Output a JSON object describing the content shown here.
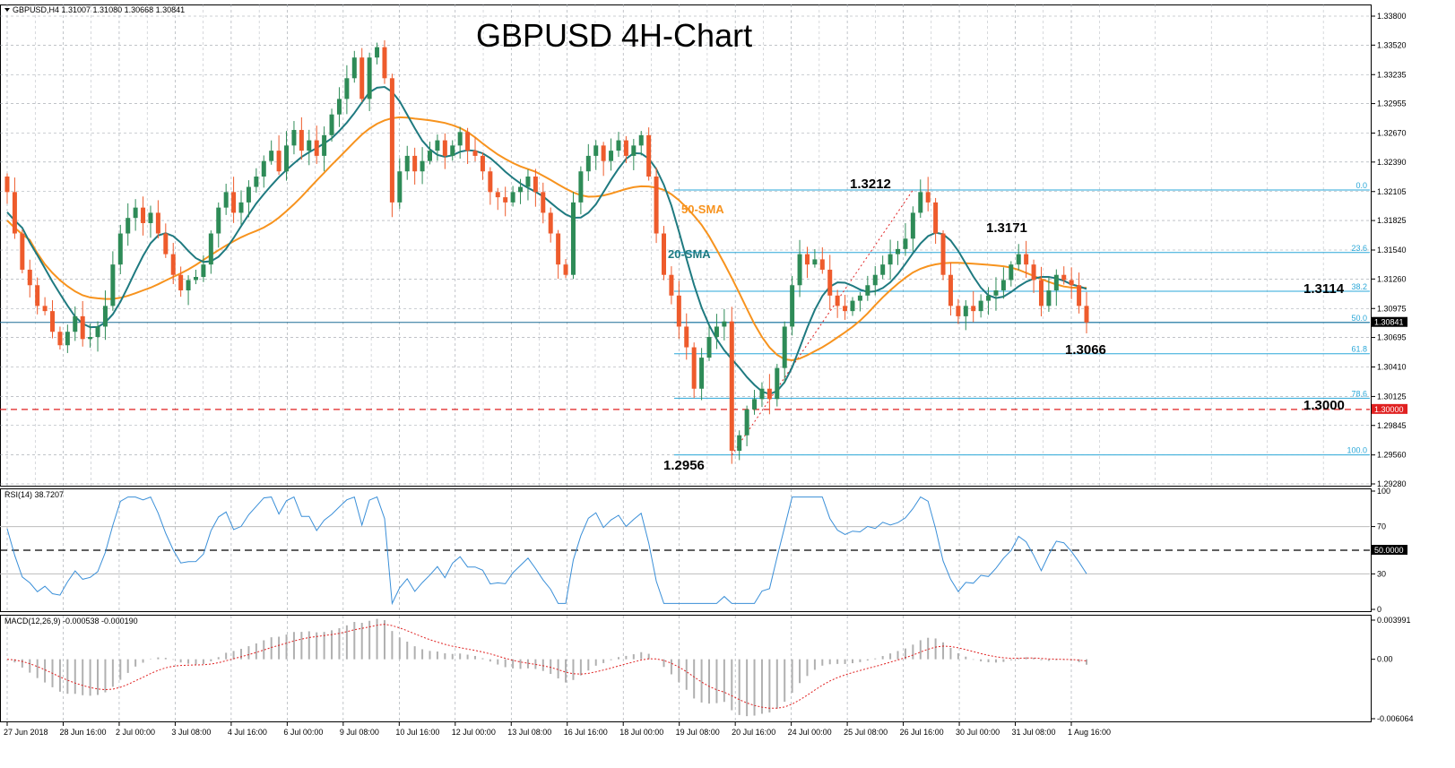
{
  "header": {
    "symbol_info": "GBPUSD,H4  1.31007 1.31080 1.30668 1.30841"
  },
  "chart_data": {
    "type": "candlestick",
    "title": "GBPUSD 4H-Chart",
    "price_axis": {
      "ylim": [
        1.2928,
        1.338
      ],
      "ticks": [
        "1.33800",
        "1.33520",
        "1.33235",
        "1.32955",
        "1.32670",
        "1.32390",
        "1.32105",
        "1.31825",
        "1.31540",
        "1.31260",
        "1.30975",
        "1.30695",
        "1.30410",
        "1.30125",
        "1.29845",
        "1.29560",
        "1.29280"
      ],
      "current_price": "1.30841",
      "current_value": 1.30841,
      "level_1_3000_label": "1.30000"
    },
    "x_ticks": [
      "27 Jun 2018",
      "28 Jun 16:00",
      "2 Jul 00:00",
      "3 Jul 08:00",
      "4 Jul 16:00",
      "6 Jul 00:00",
      "9 Jul 08:00",
      "10 Jul 16:00",
      "12 Jul 00:00",
      "13 Jul 08:00",
      "16 Jul 16:00",
      "18 Jul 00:00",
      "19 Jul 08:00",
      "20 Jul 16:00",
      "24 Jul 00:00",
      "25 Jul 08:00",
      "26 Jul 16:00",
      "30 Jul 00:00",
      "31 Jul 08:00",
      "1 Aug 16:00"
    ],
    "candle_count": 144,
    "closes": [
      1.321,
      1.317,
      1.3135,
      1.312,
      1.31,
      1.3095,
      1.3075,
      1.3062,
      1.3075,
      1.309,
      1.3068,
      1.307,
      1.308,
      1.31,
      1.314,
      1.317,
      1.3185,
      1.3195,
      1.318,
      1.319,
      1.317,
      1.315,
      1.313,
      1.3115,
      1.3125,
      1.3128,
      1.314,
      1.317,
      1.3195,
      1.321,
      1.319,
      1.32,
      1.3215,
      1.3225,
      1.324,
      1.325,
      1.323,
      1.3255,
      1.327,
      1.325,
      1.326,
      1.3245,
      1.3265,
      1.3285,
      1.33,
      1.332,
      1.334,
      1.33,
      1.334,
      1.335,
      1.332,
      1.32,
      1.323,
      1.3245,
      1.323,
      1.324,
      1.325,
      1.326,
      1.3245,
      1.3255,
      1.3268,
      1.325,
      1.3245,
      1.323,
      1.321,
      1.3205,
      1.32,
      1.321,
      1.3215,
      1.3225,
      1.321,
      1.319,
      1.317,
      1.314,
      1.313,
      1.32,
      1.323,
      1.3245,
      1.3255,
      1.324,
      1.325,
      1.326,
      1.3245,
      1.3255,
      1.3265,
      1.3225,
      1.317,
      1.313,
      1.311,
      1.308,
      1.306,
      1.302,
      1.305,
      1.307,
      1.308,
      1.3085,
      1.296,
      1.2975,
      1.3,
      1.301,
      1.302,
      1.301,
      1.304,
      1.308,
      1.312,
      1.315,
      1.314,
      1.3145,
      1.3135,
      1.311,
      1.31,
      1.3095,
      1.3105,
      1.311,
      1.312,
      1.313,
      1.314,
      1.315,
      1.3155,
      1.3165,
      1.319,
      1.321,
      1.32,
      1.317,
      1.313,
      1.31,
      1.309,
      1.31,
      1.3095,
      1.3105,
      1.311,
      1.3115,
      1.3125,
      1.314,
      1.315,
      1.314,
      1.3125,
      1.31,
      1.3115,
      1.313,
      1.3125,
      1.312,
      1.31,
      1.3084
    ],
    "fibonacci": {
      "high": 1.3212,
      "low": 1.2956,
      "levels": [
        {
          "label": "0.0",
          "price": 1.3212
        },
        {
          "label": "23.6",
          "price": 1.31516
        },
        {
          "label": "38.2",
          "price": 1.31142
        },
        {
          "label": "50.0",
          "price": 1.3084
        },
        {
          "label": "61.8",
          "price": 1.30538
        },
        {
          "label": "78.6",
          "price": 1.30108
        },
        {
          "label": "100.0",
          "price": 1.2956
        }
      ]
    },
    "annotations": [
      {
        "text": "1.3212",
        "price": 1.3212
      },
      {
        "text": "1.3171",
        "price": 1.3171
      },
      {
        "text": "1.3114",
        "price": 1.3114
      },
      {
        "text": "1.3066",
        "price": 1.3066
      },
      {
        "text": "1.3000",
        "price": 1.3
      },
      {
        "text": "1.2956",
        "price": 1.2956
      }
    ],
    "sma_labels": {
      "sma50": "50-SMA",
      "sma20": "20-SMA"
    },
    "rsi": {
      "label": "RSI(14) 38.7207",
      "value": 38.7207,
      "ylim": [
        0,
        100
      ],
      "ticks": [
        "100",
        "70",
        "50.0000",
        "30",
        "0"
      ],
      "current_label": "50.0000"
    },
    "macd": {
      "label": "MACD(12,26,9) -0.000538 -0.000190",
      "macd": -0.000538,
      "signal": -0.00019,
      "ylim": [
        -0.006064,
        0.003991
      ],
      "ticks": [
        "0.003991",
        "0.00",
        "-0.006064"
      ]
    }
  },
  "colors": {
    "bull": "#2e8b57",
    "bear": "#ee5b2c",
    "sma50": "#f7931e",
    "sma20": "#1f7a80",
    "fib": "#2aa7d8",
    "level": "#e02020",
    "rsi": "#3a8fd8",
    "macd_hist": "#b0b0b0",
    "signal": "#e02020",
    "grid": "#9aa0a8"
  }
}
